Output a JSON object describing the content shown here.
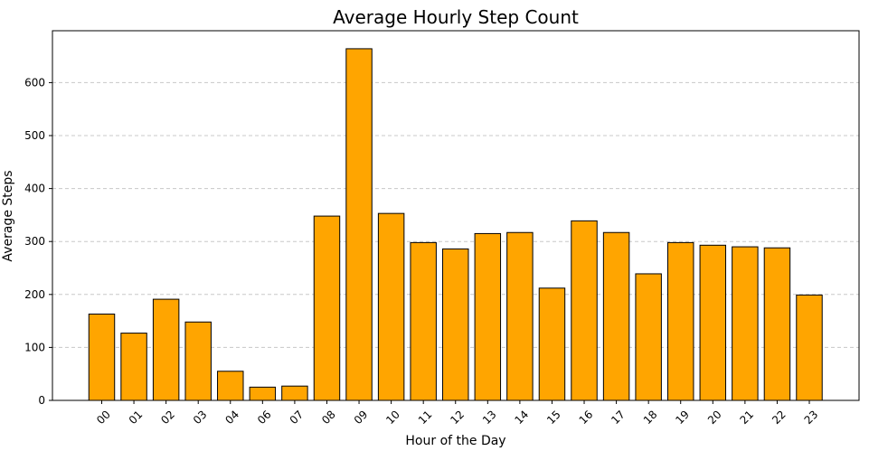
{
  "chart_data": {
    "type": "bar",
    "title": "Average Hourly Step Count",
    "xlabel": "Hour of the Day",
    "ylabel": "Average Steps",
    "categories": [
      "00",
      "01",
      "02",
      "03",
      "04",
      "06",
      "07",
      "08",
      "09",
      "10",
      "11",
      "12",
      "13",
      "14",
      "15",
      "16",
      "17",
      "18",
      "19",
      "20",
      "21",
      "22",
      "23"
    ],
    "values": [
      163,
      127,
      191,
      148,
      55,
      25,
      27,
      348,
      664,
      353,
      298,
      286,
      315,
      317,
      212,
      339,
      317,
      239,
      298,
      293,
      290,
      288,
      199
    ],
    "ylim": [
      0,
      698
    ],
    "yticks": [
      0,
      100,
      200,
      300,
      400,
      500,
      600
    ],
    "grid": true,
    "grid_axis": "y",
    "bar_color": "#FFA500",
    "edge_color": "#000000",
    "x_tick_rotation": 45
  }
}
